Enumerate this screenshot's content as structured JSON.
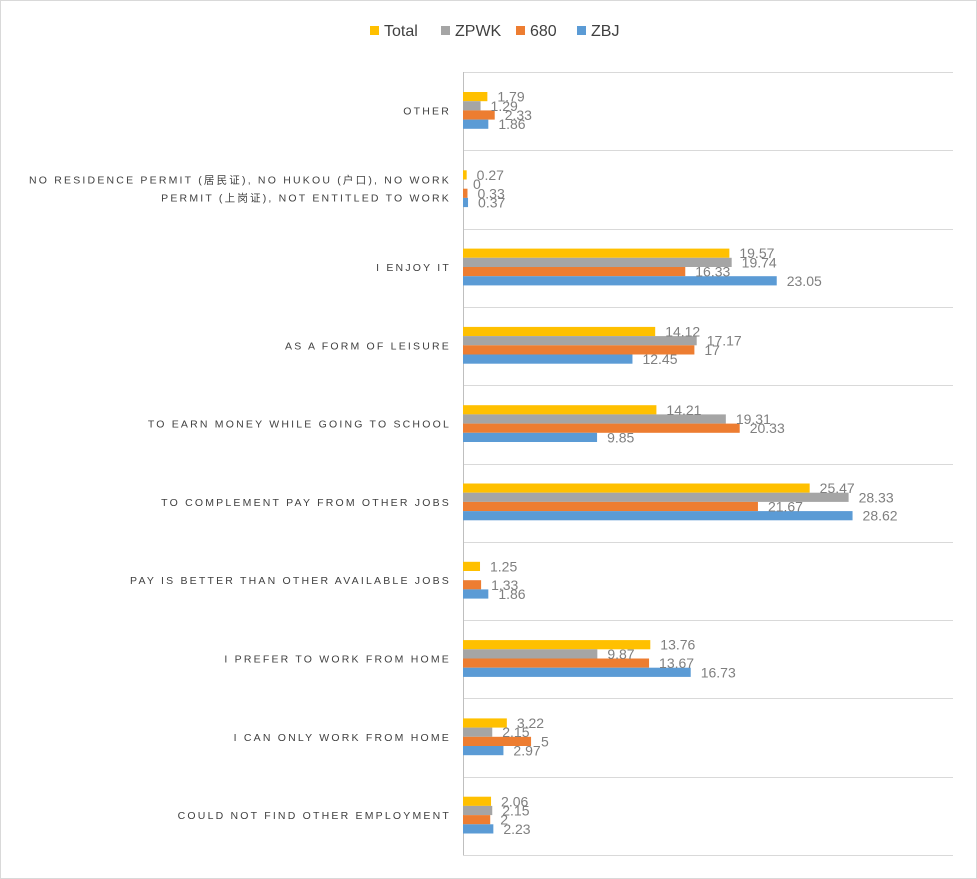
{
  "chart_data": {
    "type": "bar",
    "orientation": "horizontal",
    "title": "",
    "xlabel": "",
    "ylabel": "",
    "xlim": [
      0,
      36
    ],
    "grid": true,
    "legend_position": "top",
    "categories": [
      "OTHER",
      "NO RESIDENCE PERMIT (居民证), NO HUKOU (户口), NO WORK PERMIT (上岗证), NOT ENTITLED TO WORK",
      "I ENJOY IT",
      "AS A FORM OF LEISURE",
      "TO EARN MONEY WHILE GOING TO SCHOOL",
      "TO COMPLEMENT PAY FROM OTHER JOBS",
      "PAY IS BETTER THAN OTHER AVAILABLE JOBS",
      "I PREFER TO WORK FROM HOME",
      "I CAN ONLY WORK FROM HOME",
      "COULD NOT FIND OTHER EMPLOYMENT"
    ],
    "category_lines": [
      [
        "OTHER"
      ],
      [
        "NO RESIDENCE PERMIT (居民证), NO HUKOU (户口), NO WORK",
        "PERMIT (上岗证), NOT ENTITLED TO WORK"
      ],
      [
        "I ENJOY IT"
      ],
      [
        "AS A FORM OF LEISURE"
      ],
      [
        "TO EARN MONEY WHILE GOING TO SCHOOL"
      ],
      [
        "TO COMPLEMENT PAY FROM OTHER JOBS"
      ],
      [
        "PAY IS BETTER THAN OTHER AVAILABLE JOBS"
      ],
      [
        "I PREFER TO WORK FROM HOME"
      ],
      [
        "I CAN ONLY WORK FROM HOME"
      ],
      [
        "COULD NOT FIND OTHER EMPLOYMENT"
      ]
    ],
    "series": [
      {
        "name": "Total",
        "color": "#FFC000",
        "values": [
          1.79,
          0.27,
          19.57,
          14.12,
          14.21,
          25.47,
          1.25,
          13.76,
          3.22,
          2.06
        ],
        "labels": [
          "1.79",
          "0.27",
          "19.57",
          "14.12",
          "14.21",
          "25.47",
          "1.25",
          "13.76",
          "3.22",
          "2.06"
        ]
      },
      {
        "name": "ZPWK",
        "color": "#A5A5A5",
        "values": [
          1.29,
          0,
          19.74,
          17.17,
          19.31,
          28.33,
          null,
          9.87,
          2.15,
          2.15
        ],
        "labels": [
          "1.29",
          "0",
          "19.74",
          "17.17",
          "19.31",
          "28.33",
          "",
          "9.87",
          "2.15",
          "2.15"
        ]
      },
      {
        "name": "680",
        "color": "#ED7D31",
        "values": [
          2.33,
          0.33,
          16.33,
          17,
          20.33,
          21.67,
          1.33,
          13.67,
          5,
          2
        ],
        "labels": [
          "2.33",
          "0.33",
          "16.33",
          "17",
          "20.33",
          "21.67",
          "1.33",
          "13.67",
          "5",
          "2"
        ]
      },
      {
        "name": "ZBJ",
        "color": "#5B9BD5",
        "values": [
          1.86,
          0.37,
          23.05,
          12.45,
          9.85,
          28.62,
          1.86,
          16.73,
          2.97,
          2.23
        ],
        "labels": [
          "1.86",
          "0.37",
          "23.05",
          "12.45",
          "9.85",
          "28.62",
          "1.86",
          "16.73",
          "2.97",
          "2.23"
        ]
      }
    ]
  },
  "legend": {
    "items": [
      {
        "name": "Total",
        "color": "#FFC000"
      },
      {
        "name": "ZPWK",
        "color": "#A5A5A5"
      },
      {
        "name": "680",
        "color": "#ED7D31"
      },
      {
        "name": "ZBJ",
        "color": "#5B9BD5"
      }
    ]
  }
}
